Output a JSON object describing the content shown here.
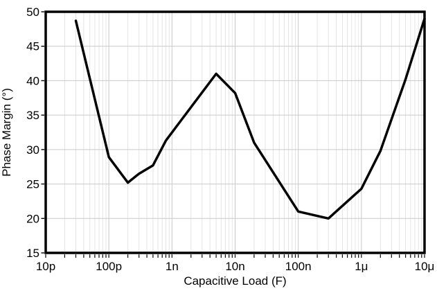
{
  "chart_data": {
    "type": "line",
    "title": "",
    "xlabel": "Capacitive Load (F)",
    "ylabel": "Phase Margin (°)",
    "x_scale": "log",
    "xlim_exp": [
      -11,
      -5
    ],
    "ylim": [
      15,
      50
    ],
    "y_step": 5,
    "grid": {
      "major": true,
      "minor_vertical": true,
      "minor_horizontal": false
    },
    "legend_position": "none",
    "x_ticks": [
      {
        "label": "10p",
        "value": 1e-11
      },
      {
        "label": "100p",
        "value": 1e-10
      },
      {
        "label": "1n",
        "value": 1e-09
      },
      {
        "label": "10n",
        "value": 1e-08
      },
      {
        "label": "100n",
        "value": 1e-07
      },
      {
        "label": "1μ",
        "value": 1e-06
      },
      {
        "label": "10μ",
        "value": 1e-05
      }
    ],
    "y_tick_labels": [
      "15",
      "20",
      "25",
      "30",
      "35",
      "40",
      "45",
      "50"
    ],
    "series": [
      {
        "name": "Phase Margin",
        "points": [
          [
            3e-11,
            48.7
          ],
          [
            1e-10,
            28.9
          ],
          [
            2e-10,
            25.2
          ],
          [
            3e-10,
            26.5
          ],
          [
            5e-10,
            27.7
          ],
          [
            8e-10,
            31.3
          ],
          [
            5e-09,
            41.0
          ],
          [
            1e-08,
            38.2
          ],
          [
            2e-08,
            31.0
          ],
          [
            1e-07,
            21.0
          ],
          [
            3e-07,
            20.0
          ],
          [
            1e-06,
            24.3
          ],
          [
            2e-06,
            29.8
          ],
          [
            5e-06,
            40.2
          ],
          [
            1e-05,
            49.0
          ]
        ]
      }
    ]
  },
  "colors": {
    "curve": "#000000",
    "frame": "#000000",
    "grid_major": "#c9c9c9",
    "grid_minor": "#e4e4e4",
    "background": "#ffffff",
    "text": "#000000"
  }
}
